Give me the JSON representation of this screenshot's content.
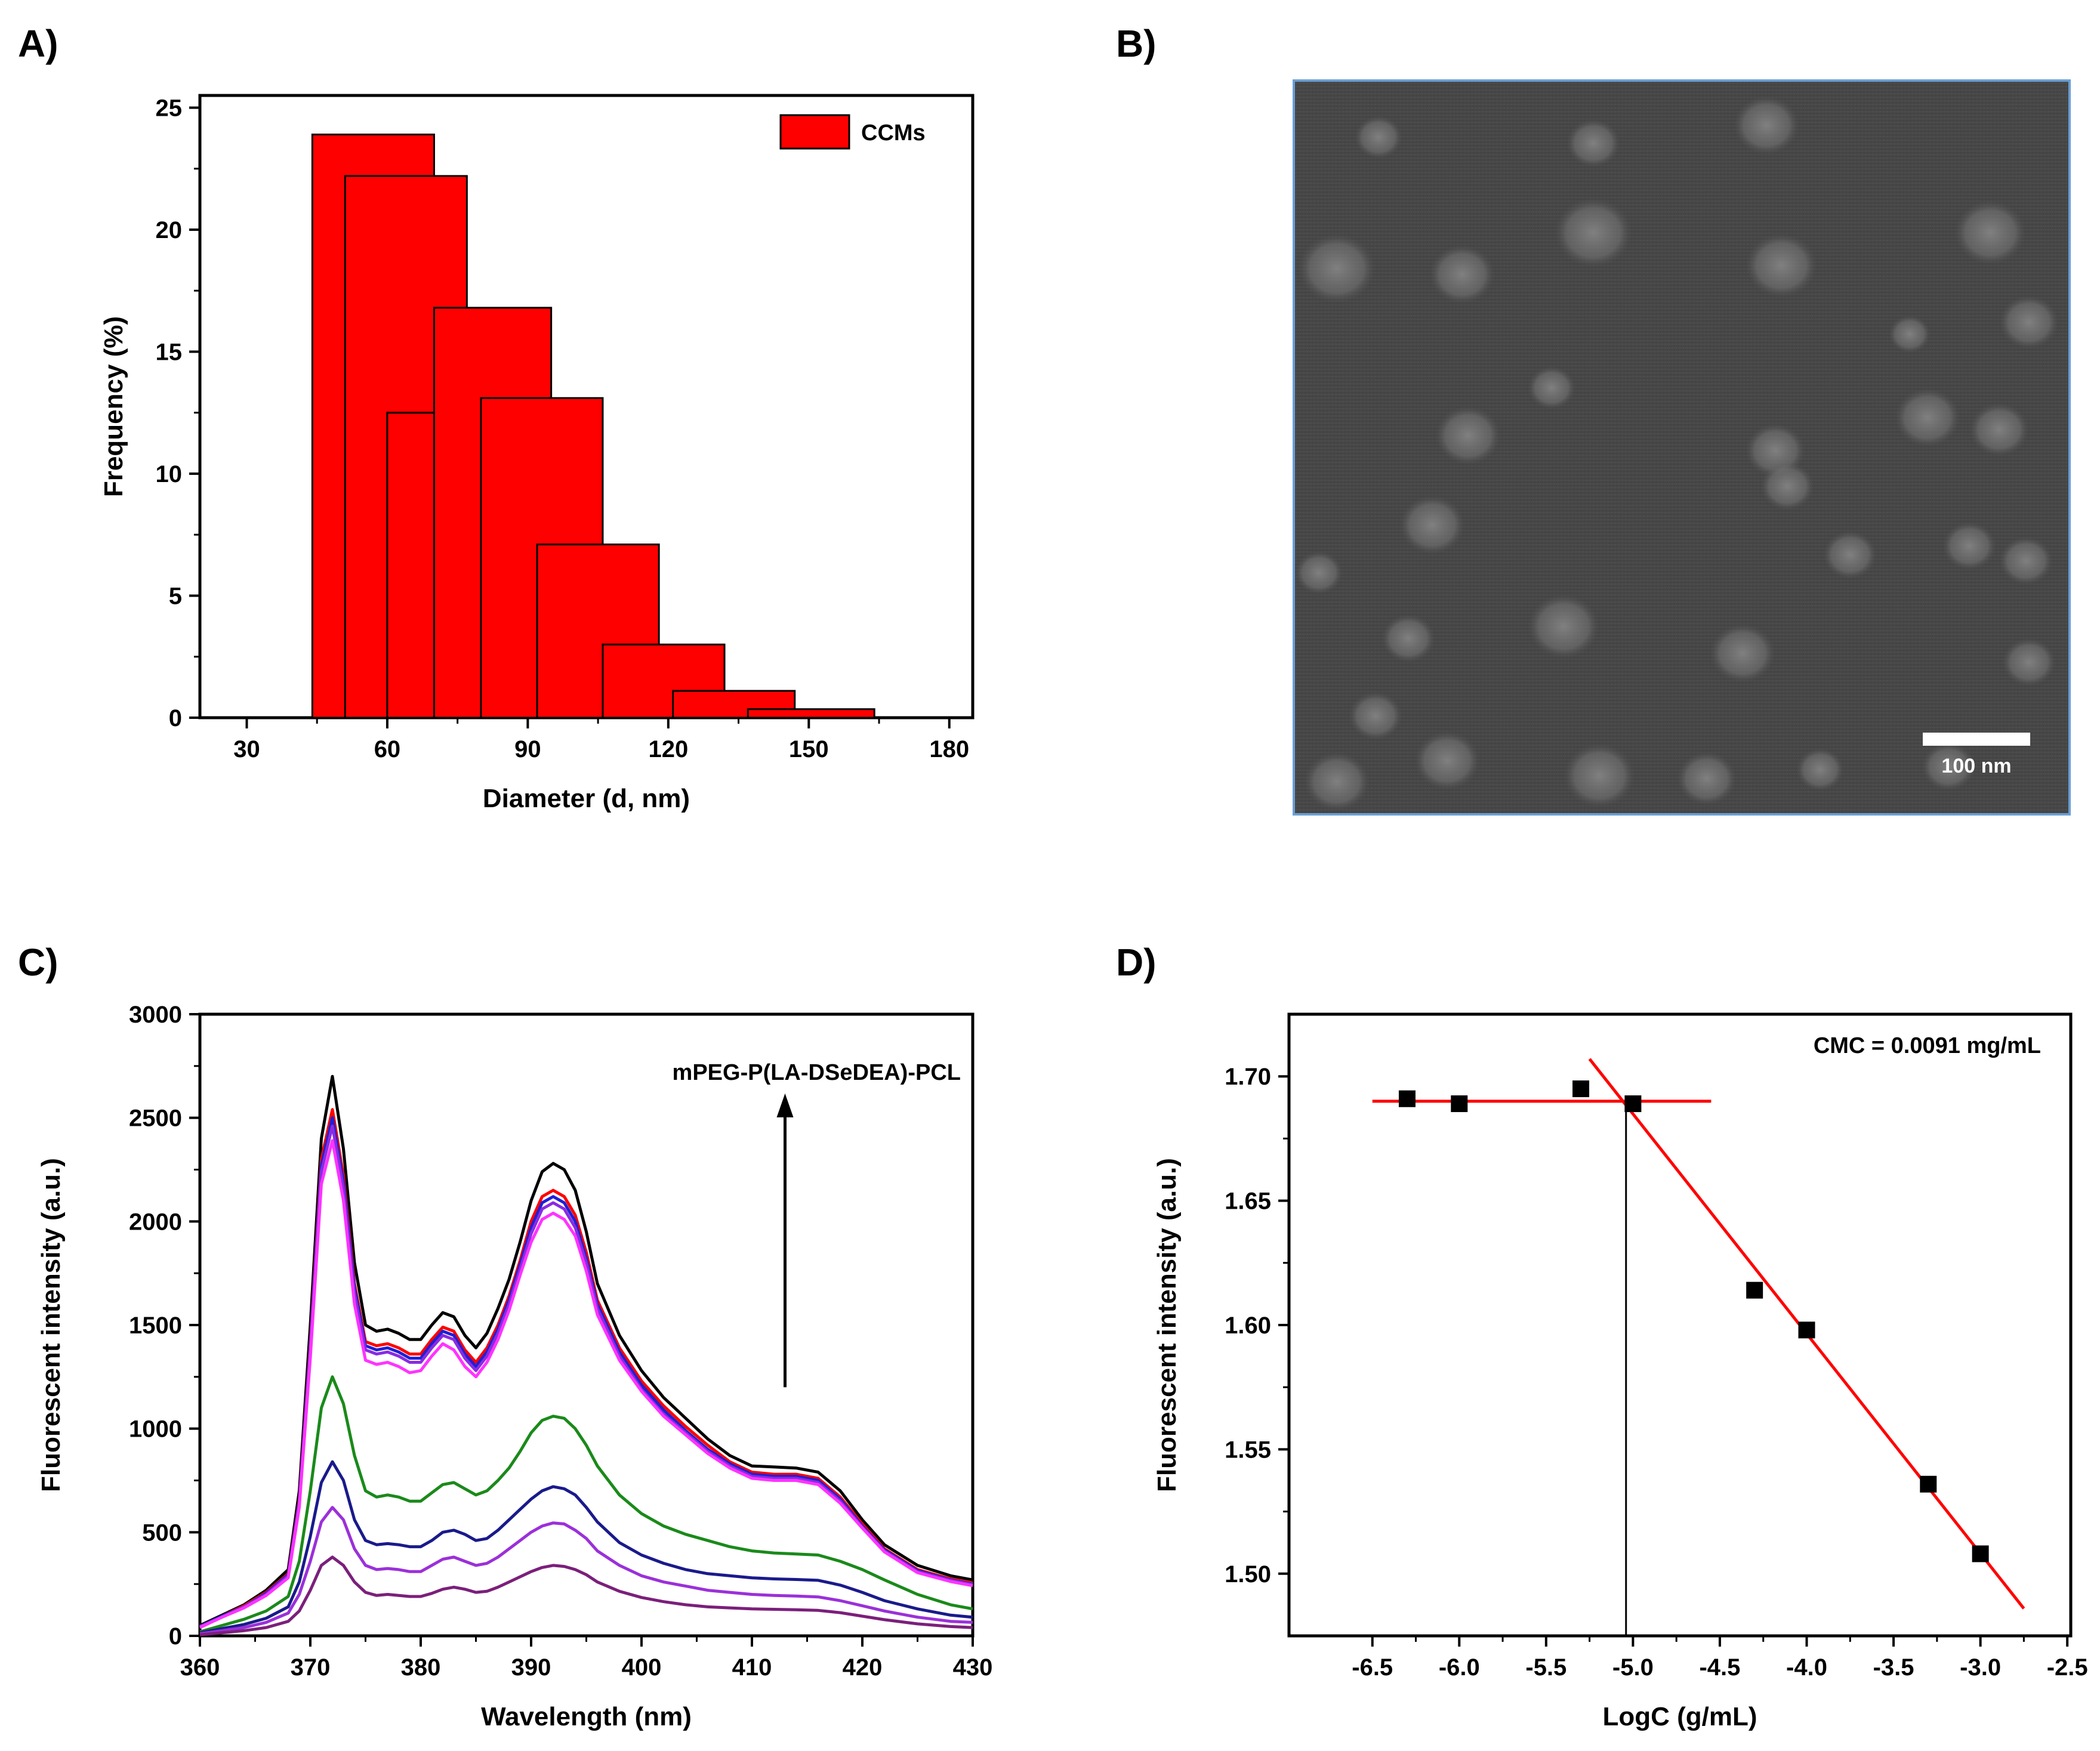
{
  "panels": {
    "a": "A)",
    "b": "B)",
    "c": "C)",
    "d": "D)"
  },
  "sem_image": {
    "scale_bar_label": "100 nm"
  },
  "chart_data": [
    {
      "id": "A",
      "type": "bar",
      "title": "",
      "xlabel": "Diameter (d, nm)",
      "ylabel": "Frequency (%)",
      "xlim": [
        20,
        185
      ],
      "ylim": [
        0,
        25.5
      ],
      "xticks": [
        30,
        60,
        90,
        120,
        150,
        180
      ],
      "yticks": [
        0,
        5,
        10,
        15,
        20,
        25
      ],
      "legend": {
        "label": "CCMs",
        "position": "top-right",
        "color": "#ff0000"
      },
      "bar_color": "#ff0000",
      "bars": [
        {
          "x0": 44,
          "x1": 70,
          "value": 23.9
        },
        {
          "x0": 51,
          "x1": 77,
          "value": 22.2
        },
        {
          "x0": 60,
          "x1": 70,
          "value": 12.5
        },
        {
          "x0": 70,
          "x1": 95,
          "value": 16.8
        },
        {
          "x0": 80,
          "x1": 106,
          "value": 13.1
        },
        {
          "x0": 92,
          "x1": 118,
          "value": 7.1
        },
        {
          "x0": 106,
          "x1": 132,
          "value": 3.0
        },
        {
          "x0": 121,
          "x1": 147,
          "value": 1.1
        },
        {
          "x0": 137,
          "x1": 164,
          "value": 0.35
        }
      ]
    },
    {
      "id": "C",
      "type": "line",
      "title": "",
      "xlabel": "Wavelength (nm)",
      "ylabel": "Fluorescent intensity (a.u.)",
      "xlim": [
        360,
        430
      ],
      "ylim": [
        0,
        3000
      ],
      "xticks": [
        360,
        370,
        380,
        390,
        400,
        410,
        420,
        430
      ],
      "yticks": [
        0,
        500,
        1000,
        1500,
        2000,
        2500,
        3000
      ],
      "annotation": "mPEG-P(LA-DSeDEA)-PCL",
      "arrow": {
        "x": 413,
        "from": 1200,
        "to": 2600
      },
      "x": [
        360,
        362,
        364,
        366,
        368,
        369,
        370,
        371,
        372,
        373,
        374,
        375,
        376,
        377,
        378,
        379,
        380,
        381,
        382,
        383,
        384,
        385,
        386,
        387,
        388,
        389,
        390,
        391,
        392,
        393,
        394,
        395,
        396,
        398,
        400,
        402,
        404,
        406,
        408,
        410,
        412,
        414,
        416,
        418,
        420,
        422,
        425,
        428,
        430
      ],
      "series": [
        {
          "name": "black",
          "color": "#000000",
          "values": [
            50,
            100,
            150,
            220,
            320,
            700,
            1500,
            2400,
            2700,
            2350,
            1800,
            1500,
            1470,
            1480,
            1460,
            1430,
            1430,
            1500,
            1560,
            1540,
            1450,
            1390,
            1460,
            1580,
            1720,
            1900,
            2100,
            2240,
            2280,
            2250,
            2150,
            1950,
            1700,
            1450,
            1280,
            1150,
            1050,
            950,
            870,
            820,
            815,
            810,
            790,
            700,
            560,
            440,
            340,
            290,
            270
          ]
        },
        {
          "name": "red",
          "color": "#ff0000",
          "values": [
            45,
            95,
            145,
            210,
            300,
            660,
            1420,
            2300,
            2540,
            2220,
            1700,
            1420,
            1400,
            1410,
            1390,
            1360,
            1360,
            1430,
            1490,
            1470,
            1380,
            1320,
            1390,
            1500,
            1640,
            1810,
            2000,
            2120,
            2150,
            2120,
            2030,
            1850,
            1620,
            1390,
            1230,
            1110,
            1010,
            920,
            840,
            790,
            780,
            780,
            760,
            670,
            540,
            420,
            320,
            275,
            255
          ]
        },
        {
          "name": "blue",
          "color": "#1f1fd6",
          "values": [
            45,
            95,
            140,
            205,
            295,
            650,
            1400,
            2270,
            2500,
            2190,
            1680,
            1400,
            1380,
            1390,
            1370,
            1340,
            1340,
            1410,
            1470,
            1450,
            1360,
            1300,
            1370,
            1480,
            1620,
            1790,
            1970,
            2090,
            2120,
            2090,
            2000,
            1820,
            1600,
            1370,
            1210,
            1090,
            990,
            900,
            830,
            780,
            770,
            770,
            750,
            660,
            530,
            415,
            315,
            270,
            250
          ]
        },
        {
          "name": "purple",
          "color": "#8a2be2",
          "values": [
            45,
            90,
            140,
            200,
            290,
            640,
            1380,
            2240,
            2460,
            2160,
            1650,
            1380,
            1360,
            1370,
            1350,
            1320,
            1320,
            1390,
            1450,
            1430,
            1340,
            1280,
            1350,
            1460,
            1600,
            1770,
            1940,
            2060,
            2090,
            2060,
            1970,
            1800,
            1580,
            1350,
            1190,
            1070,
            980,
            890,
            820,
            770,
            760,
            760,
            740,
            650,
            525,
            410,
            310,
            268,
            248
          ]
        },
        {
          "name": "magenta",
          "color": "#ff33ff",
          "values": [
            40,
            90,
            135,
            195,
            280,
            620,
            1340,
            2180,
            2390,
            2100,
            1600,
            1330,
            1310,
            1320,
            1300,
            1270,
            1280,
            1350,
            1410,
            1380,
            1300,
            1250,
            1320,
            1430,
            1570,
            1740,
            1900,
            2010,
            2040,
            2010,
            1930,
            1760,
            1550,
            1330,
            1180,
            1060,
            970,
            880,
            810,
            760,
            750,
            750,
            730,
            640,
            520,
            405,
            305,
            262,
            242
          ]
        },
        {
          "name": "green",
          "color": "#1a8a1a",
          "values": [
            20,
            50,
            80,
            120,
            190,
            360,
            700,
            1100,
            1250,
            1120,
            870,
            700,
            670,
            680,
            670,
            650,
            650,
            690,
            730,
            740,
            710,
            680,
            700,
            750,
            810,
            890,
            980,
            1040,
            1060,
            1050,
            1000,
            920,
            820,
            680,
            590,
            530,
            490,
            460,
            430,
            410,
            400,
            395,
            390,
            360,
            320,
            270,
            200,
            150,
            130
          ]
        },
        {
          "name": "navy",
          "color": "#1a1a8c",
          "values": [
            15,
            35,
            55,
            85,
            140,
            260,
            480,
            740,
            840,
            750,
            560,
            460,
            440,
            445,
            440,
            430,
            430,
            460,
            500,
            510,
            490,
            460,
            470,
            510,
            560,
            610,
            660,
            700,
            720,
            710,
            680,
            620,
            550,
            450,
            390,
            350,
            320,
            300,
            290,
            280,
            275,
            272,
            268,
            245,
            210,
            170,
            130,
            100,
            90
          ]
        },
        {
          "name": "violet",
          "color": "#9b30d9",
          "values": [
            10,
            25,
            40,
            65,
            110,
            200,
            360,
            550,
            620,
            560,
            420,
            340,
            320,
            325,
            320,
            310,
            310,
            340,
            370,
            380,
            360,
            340,
            350,
            380,
            420,
            460,
            500,
            530,
            545,
            540,
            510,
            470,
            410,
            340,
            290,
            260,
            240,
            220,
            210,
            200,
            195,
            192,
            188,
            170,
            145,
            120,
            90,
            70,
            65
          ]
        },
        {
          "name": "dark-purple",
          "color": "#7b1f7b",
          "values": [
            5,
            15,
            25,
            40,
            70,
            120,
            220,
            340,
            380,
            340,
            260,
            210,
            195,
            200,
            195,
            190,
            190,
            205,
            225,
            235,
            225,
            210,
            215,
            235,
            260,
            285,
            310,
            330,
            340,
            335,
            320,
            295,
            260,
            215,
            185,
            165,
            150,
            140,
            135,
            130,
            128,
            126,
            123,
            112,
            95,
            78,
            58,
            45,
            40
          ]
        }
      ]
    },
    {
      "id": "D",
      "type": "scatter",
      "title": "",
      "xlabel": "LogC (g/mL)",
      "ylabel": "Fluorescent intensity (a.u.)",
      "xlim": [
        -6.98,
        -2.48
      ],
      "ylim": [
        1.475,
        1.725
      ],
      "xticks": [
        -6.5,
        -6.0,
        -5.5,
        -5.0,
        -4.5,
        -4.0,
        -3.5,
        -3.0,
        -2.5
      ],
      "xtick_labels": [
        "-6.5",
        "-6.0",
        "-5.5",
        "-5.0",
        "-4.5",
        "-4.0",
        "-3.5",
        "-3.0",
        "-2.5"
      ],
      "yticks": [
        1.5,
        1.55,
        1.6,
        1.65,
        1.7
      ],
      "ytick_labels": [
        "1.50",
        "1.55",
        "1.60",
        "1.65",
        "1.70"
      ],
      "annotation": "CMC = 0.0091 mg/mL",
      "points": [
        {
          "x": -6.3,
          "y": 1.691
        },
        {
          "x": -6.0,
          "y": 1.689
        },
        {
          "x": -5.3,
          "y": 1.695
        },
        {
          "x": -5.0,
          "y": 1.689
        },
        {
          "x": -4.3,
          "y": 1.614
        },
        {
          "x": -4.0,
          "y": 1.598
        },
        {
          "x": -3.3,
          "y": 1.536
        },
        {
          "x": -3.0,
          "y": 1.508
        }
      ],
      "fit_lines": [
        {
          "color": "#ff0000",
          "x": [
            -6.5,
            -4.55
          ],
          "y": [
            1.69,
            1.69
          ]
        },
        {
          "color": "#ff0000",
          "x": [
            -5.25,
            -2.75
          ],
          "y": [
            1.707,
            1.486
          ]
        }
      ],
      "vline": {
        "x": -5.04,
        "color": "#000000"
      }
    }
  ]
}
